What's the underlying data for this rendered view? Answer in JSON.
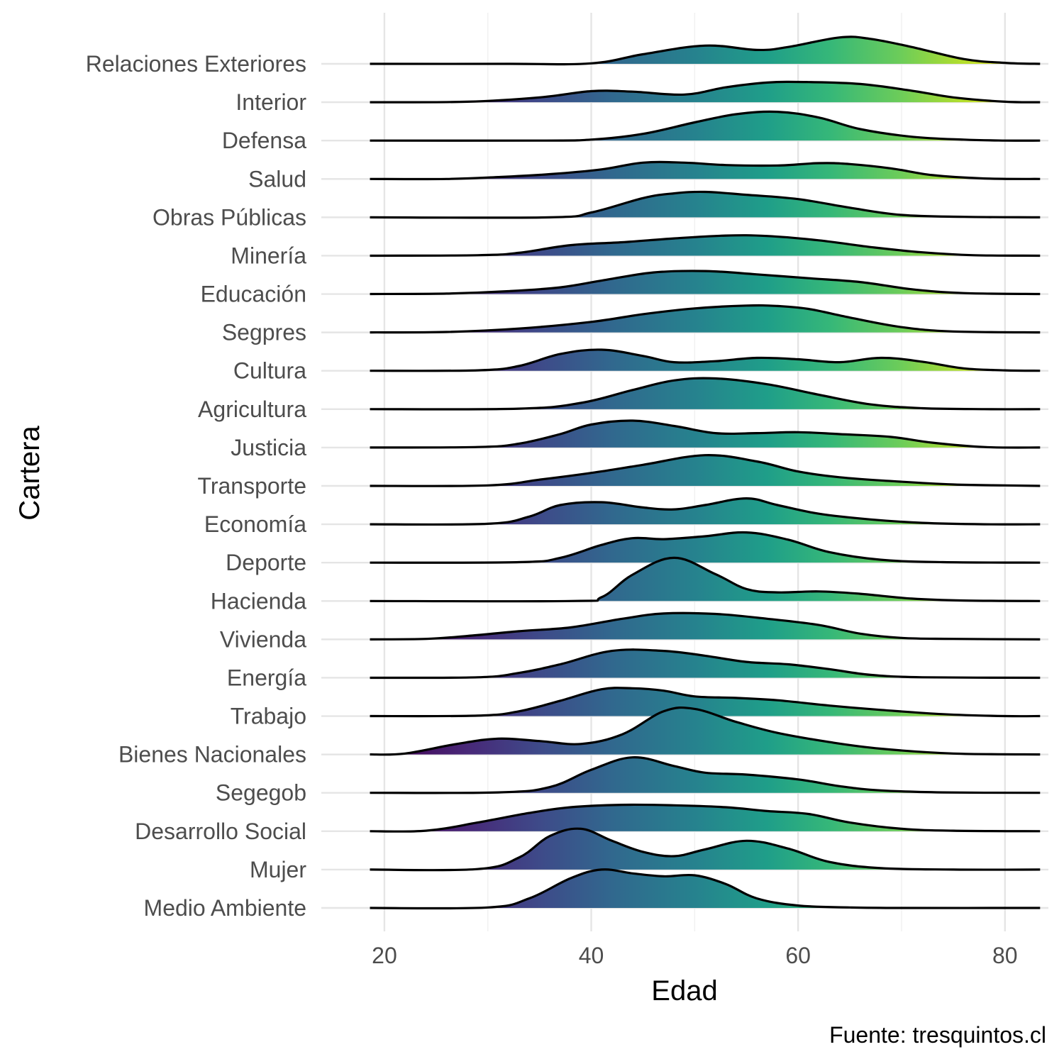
{
  "chart_data": {
    "type": "ridgeline",
    "title": "",
    "xlabel": "Edad",
    "ylabel": "Cartera",
    "caption": "Fuente: tresquintos.cl",
    "x_range": [
      18.6,
      83.4
    ],
    "x_limits": [
      13.9,
      84.2
    ],
    "x_ticks": [
      20,
      40,
      60,
      80
    ],
    "grid": true,
    "fill": "viridis gradient along x",
    "gradient_stops": [
      {
        "x": 20,
        "color": "#440154"
      },
      {
        "x": 28,
        "color": "#482878"
      },
      {
        "x": 35,
        "color": "#3E4A89"
      },
      {
        "x": 42,
        "color": "#31688E"
      },
      {
        "x": 50,
        "color": "#26828E"
      },
      {
        "x": 57,
        "color": "#1F9E89"
      },
      {
        "x": 63,
        "color": "#35B779"
      },
      {
        "x": 70,
        "color": "#6DCD59"
      },
      {
        "x": 76,
        "color": "#B4DE2C"
      },
      {
        "x": 82,
        "color": "#FDE725"
      }
    ],
    "series": [
      {
        "name": "Relaciones Exteriores",
        "x": [
          18.6,
          32,
          40,
          45,
          51,
          56,
          59,
          64,
          67,
          71,
          76,
          80,
          83.4
        ],
        "density": [
          0,
          0,
          0.01,
          0.2,
          0.38,
          0.29,
          0.35,
          0.55,
          0.52,
          0.35,
          0.1,
          0.02,
          0
        ]
      },
      {
        "name": "Interior",
        "x": [
          18.6,
          28,
          35,
          40,
          44,
          49,
          53,
          57,
          61,
          66,
          71,
          75,
          80,
          83.4
        ],
        "density": [
          0,
          0.01,
          0.1,
          0.23,
          0.22,
          0.16,
          0.31,
          0.41,
          0.42,
          0.38,
          0.24,
          0.1,
          0.01,
          0
        ]
      },
      {
        "name": "Defensa",
        "x": [
          18.6,
          35,
          40,
          45,
          50,
          54,
          58,
          62,
          66,
          71,
          76,
          80,
          83.4
        ],
        "density": [
          0,
          0,
          0.02,
          0.14,
          0.38,
          0.55,
          0.6,
          0.48,
          0.24,
          0.08,
          0.02,
          0,
          0
        ]
      },
      {
        "name": "Salud",
        "x": [
          18.6,
          26,
          31,
          36,
          41,
          45,
          49,
          53,
          58,
          62,
          65,
          69,
          73,
          78,
          83.4
        ],
        "density": [
          0,
          0,
          0.04,
          0.1,
          0.2,
          0.34,
          0.34,
          0.29,
          0.28,
          0.33,
          0.31,
          0.22,
          0.08,
          0.01,
          0
        ]
      },
      {
        "name": "Obras Públicas",
        "x": [
          18.6,
          36,
          40,
          45,
          48,
          51,
          55,
          60,
          65,
          70,
          76,
          83.4
        ],
        "density": [
          0,
          0,
          0.1,
          0.4,
          0.5,
          0.53,
          0.47,
          0.38,
          0.2,
          0.05,
          0.01,
          0
        ]
      },
      {
        "name": "Minería",
        "x": [
          18.6,
          29,
          33,
          38,
          43,
          48,
          53,
          57,
          62,
          67,
          72,
          77,
          83.4
        ],
        "density": [
          0,
          0.01,
          0.06,
          0.22,
          0.28,
          0.36,
          0.42,
          0.41,
          0.32,
          0.18,
          0.07,
          0.01,
          0
        ]
      },
      {
        "name": "Educación",
        "x": [
          18.6,
          26,
          32,
          37,
          41,
          46,
          51,
          56,
          61,
          66,
          71,
          76,
          83.4
        ],
        "density": [
          0,
          0.01,
          0.06,
          0.14,
          0.28,
          0.45,
          0.48,
          0.41,
          0.33,
          0.25,
          0.1,
          0.02,
          0
        ]
      },
      {
        "name": "Segpres",
        "x": [
          18.6,
          26,
          33,
          40,
          45,
          50,
          55,
          58,
          61,
          65,
          70,
          75,
          83.4
        ],
        "density": [
          0,
          0.01,
          0.08,
          0.22,
          0.38,
          0.5,
          0.56,
          0.55,
          0.49,
          0.31,
          0.11,
          0.02,
          0
        ]
      },
      {
        "name": "Cultura",
        "x": [
          18.6,
          29,
          33,
          37,
          41,
          45,
          48,
          52,
          56,
          60,
          64,
          68,
          72,
          76,
          80,
          83.4
        ],
        "density": [
          0,
          0.01,
          0.1,
          0.35,
          0.44,
          0.31,
          0.18,
          0.2,
          0.27,
          0.24,
          0.18,
          0.27,
          0.19,
          0.05,
          0.01,
          0
        ]
      },
      {
        "name": "Agricultura",
        "x": [
          18.6,
          33,
          39,
          44,
          48,
          52,
          57,
          62,
          67,
          72,
          78,
          83.4
        ],
        "density": [
          0,
          0.01,
          0.13,
          0.4,
          0.6,
          0.64,
          0.52,
          0.3,
          0.1,
          0.02,
          0,
          0
        ]
      },
      {
        "name": "Justicia",
        "x": [
          18.6,
          29,
          33,
          37,
          40,
          44,
          48,
          52,
          56,
          60,
          64,
          69,
          73,
          78,
          83.4
        ],
        "density": [
          0,
          0.01,
          0.08,
          0.28,
          0.48,
          0.56,
          0.45,
          0.3,
          0.3,
          0.32,
          0.28,
          0.22,
          0.1,
          0.01,
          0
        ]
      },
      {
        "name": "Transporte",
        "x": [
          18.6,
          30,
          35,
          40,
          45,
          51,
          56,
          60,
          64,
          69,
          75,
          80,
          83.4
        ],
        "density": [
          0,
          0.01,
          0.13,
          0.27,
          0.44,
          0.64,
          0.51,
          0.3,
          0.18,
          0.1,
          0.03,
          0.01,
          0
        ]
      },
      {
        "name": "Economía",
        "x": [
          18.6,
          30,
          34,
          37,
          41,
          45,
          48,
          51,
          55,
          58,
          62,
          67,
          72,
          78,
          83.4
        ],
        "density": [
          0,
          0.01,
          0.16,
          0.4,
          0.46,
          0.35,
          0.31,
          0.4,
          0.54,
          0.4,
          0.22,
          0.1,
          0.03,
          0,
          0
        ]
      },
      {
        "name": "Deporte",
        "x": [
          18.6,
          33,
          37,
          41,
          44,
          47,
          51,
          55,
          59,
          63,
          68,
          74,
          83.4
        ],
        "density": [
          0,
          0.01,
          0.1,
          0.37,
          0.51,
          0.49,
          0.55,
          0.63,
          0.48,
          0.22,
          0.06,
          0.01,
          0
        ]
      },
      {
        "name": "Hacienda",
        "x": [
          18.6,
          38,
          41,
          44,
          48,
          52,
          55,
          58,
          62,
          66,
          71,
          76,
          83.4
        ],
        "density": [
          0,
          0,
          0.08,
          0.55,
          0.9,
          0.56,
          0.25,
          0.18,
          0.2,
          0.15,
          0.05,
          0.01,
          0
        ]
      },
      {
        "name": "Vivienda",
        "x": [
          18.6,
          24,
          28,
          33,
          38,
          43,
          47,
          52,
          57,
          62,
          66,
          70,
          75,
          83.4
        ],
        "density": [
          0,
          0.01,
          0.07,
          0.17,
          0.25,
          0.43,
          0.54,
          0.53,
          0.43,
          0.3,
          0.12,
          0.03,
          0.01,
          0
        ]
      },
      {
        "name": "Energía",
        "x": [
          18.6,
          29,
          33,
          37,
          42,
          47,
          51,
          55,
          59,
          63,
          67,
          72,
          83.4
        ],
        "density": [
          0,
          0.01,
          0.1,
          0.28,
          0.56,
          0.56,
          0.46,
          0.33,
          0.28,
          0.18,
          0.06,
          0.01,
          0
        ]
      },
      {
        "name": "Trabajo",
        "x": [
          18.6,
          29,
          33,
          37,
          41,
          44,
          47,
          50,
          54,
          58,
          63,
          68,
          74,
          80,
          83.4
        ],
        "density": [
          0,
          0.01,
          0.1,
          0.32,
          0.56,
          0.58,
          0.53,
          0.41,
          0.38,
          0.33,
          0.22,
          0.13,
          0.04,
          0,
          0
        ]
      },
      {
        "name": "Bienes Nacionales",
        "x": [
          18.6,
          22,
          27,
          31,
          35,
          39,
          43,
          47,
          50,
          54,
          58,
          63,
          68,
          75,
          83.4
        ],
        "density": [
          0,
          0.02,
          0.22,
          0.33,
          0.28,
          0.22,
          0.42,
          0.9,
          0.95,
          0.68,
          0.45,
          0.26,
          0.12,
          0.02,
          0
        ]
      },
      {
        "name": "Segegob",
        "x": [
          18.6,
          31,
          36,
          40,
          44,
          48,
          51,
          55,
          60,
          64,
          68,
          74,
          83.4
        ],
        "density": [
          0,
          0.01,
          0.12,
          0.48,
          0.74,
          0.56,
          0.42,
          0.38,
          0.28,
          0.14,
          0.05,
          0.01,
          0
        ]
      },
      {
        "name": "Desarrollo Social",
        "x": [
          18.6,
          24,
          29,
          34,
          38,
          43,
          48,
          53,
          57,
          61,
          65,
          70,
          75,
          83.4
        ],
        "density": [
          0,
          0.01,
          0.18,
          0.38,
          0.5,
          0.55,
          0.54,
          0.5,
          0.42,
          0.36,
          0.18,
          0.05,
          0.01,
          0
        ]
      },
      {
        "name": "Mujer",
        "x": [
          18.6,
          29,
          33,
          36,
          39,
          42,
          45,
          48,
          51,
          55,
          59,
          63,
          68,
          75,
          83.4
        ],
        "density": [
          0,
          0.01,
          0.25,
          0.7,
          0.85,
          0.6,
          0.37,
          0.28,
          0.42,
          0.6,
          0.44,
          0.16,
          0.03,
          0,
          0
        ]
      },
      {
        "name": "Medio Ambiente",
        "x": [
          18.6,
          30,
          34,
          38,
          41,
          44,
          47,
          50,
          53,
          56,
          60,
          65,
          70,
          83.4
        ],
        "density": [
          0,
          0.01,
          0.2,
          0.62,
          0.8,
          0.72,
          0.66,
          0.68,
          0.5,
          0.2,
          0.05,
          0.01,
          0,
          0
        ]
      }
    ]
  }
}
